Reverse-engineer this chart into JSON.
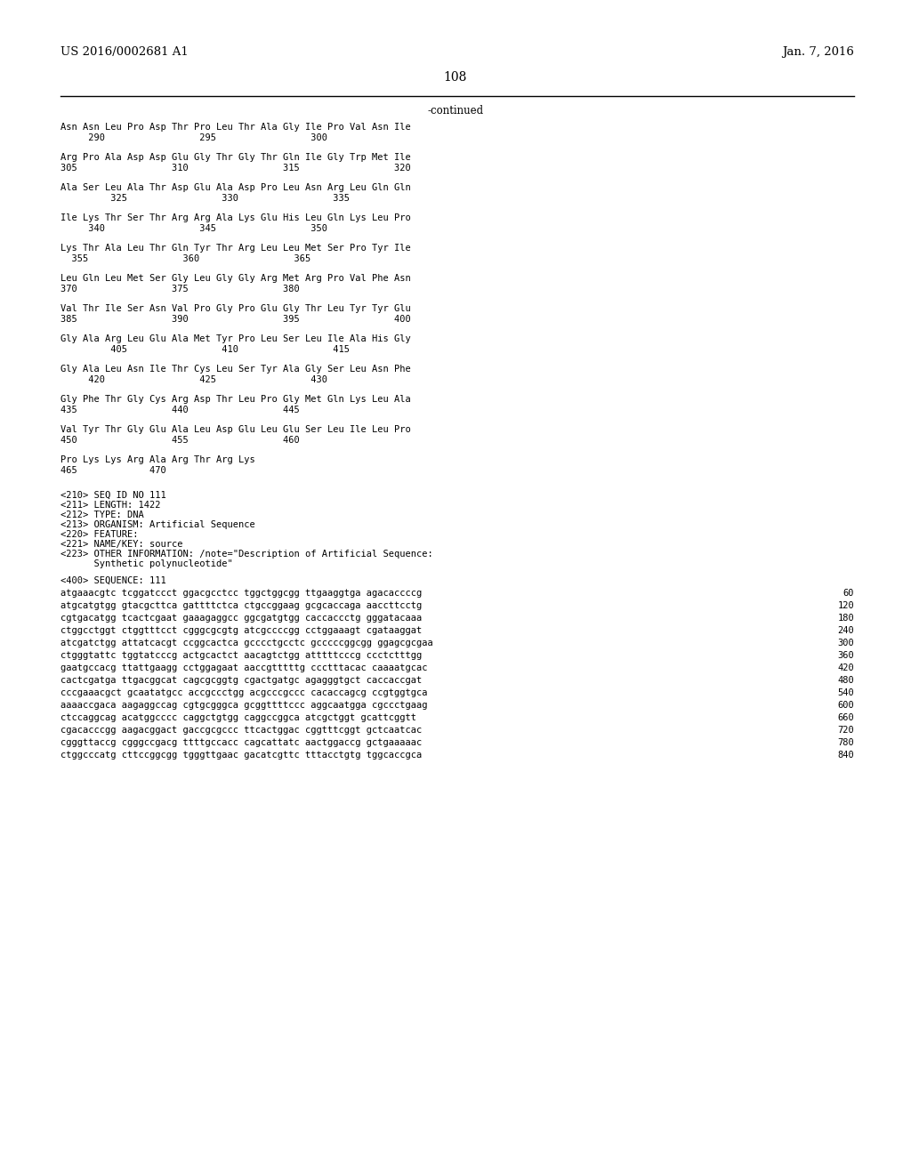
{
  "header_left": "US 2016/0002681 A1",
  "header_right": "Jan. 7, 2016",
  "page_number": "108",
  "continued_label": "-continued",
  "background_color": "#ffffff",
  "text_color": "#000000",
  "mono_font_size": 7.5,
  "header_font_size": 9.5,
  "page_num_font_size": 10.0,
  "amino_acid_blocks": [
    {
      "seq": "Asn Asn Leu Pro Asp Thr Pro Leu Thr Ala Gly Ile Pro Val Asn Ile",
      "nums": "     290                 295                 300"
    },
    {
      "seq": "Arg Pro Ala Asp Asp Glu Gly Thr Gly Thr Gln Ile Gly Trp Met Ile",
      "nums": "305                 310                 315                 320"
    },
    {
      "seq": "Ala Ser Leu Ala Thr Asp Glu Ala Asp Pro Leu Asn Arg Leu Gln Gln",
      "nums": "         325                 330                 335"
    },
    {
      "seq": "Ile Lys Thr Ser Thr Arg Arg Ala Lys Glu His Leu Gln Lys Leu Pro",
      "nums": "     340                 345                 350"
    },
    {
      "seq": "Lys Thr Ala Leu Thr Gln Tyr Thr Arg Leu Leu Met Ser Pro Tyr Ile",
      "nums": "  355                 360                 365"
    },
    {
      "seq": "Leu Gln Leu Met Ser Gly Leu Gly Gly Arg Met Arg Pro Val Phe Asn",
      "nums": "370                 375                 380"
    },
    {
      "seq": "Val Thr Ile Ser Asn Val Pro Gly Pro Glu Gly Thr Leu Tyr Tyr Glu",
      "nums": "385                 390                 395                 400"
    },
    {
      "seq": "Gly Ala Arg Leu Glu Ala Met Tyr Pro Leu Ser Leu Ile Ala His Gly",
      "nums": "         405                 410                 415"
    },
    {
      "seq": "Gly Ala Leu Asn Ile Thr Cys Leu Ser Tyr Ala Gly Ser Leu Asn Phe",
      "nums": "     420                 425                 430"
    },
    {
      "seq": "Gly Phe Thr Gly Cys Arg Asp Thr Leu Pro Gly Met Gln Lys Leu Ala",
      "nums": "435                 440                 445"
    },
    {
      "seq": "Val Tyr Thr Gly Glu Ala Leu Asp Glu Leu Glu Ser Leu Ile Leu Pro",
      "nums": "450                 455                 460"
    },
    {
      "seq": "Pro Lys Lys Arg Ala Arg Thr Arg Lys",
      "nums": "465             470"
    }
  ],
  "metadata_lines": [
    "<210> SEQ ID NO 111",
    "<211> LENGTH: 1422",
    "<212> TYPE: DNA",
    "<213> ORGANISM: Artificial Sequence",
    "<220> FEATURE:",
    "<221> NAME/KEY: source",
    "<223> OTHER INFORMATION: /note=\"Description of Artificial Sequence:",
    "      Synthetic polynucleotide\""
  ],
  "sequence_label": "<400> SEQUENCE: 111",
  "dna_lines": [
    {
      "seq": "atgaaacgtc tcggatccct ggacgcctcc tggctggcgg ttgaaggtga agacaccccg",
      "num": "60"
    },
    {
      "seq": "atgcatgtgg gtacgcttca gattttctca ctgccggaag gcgcaccaga aaccttcctg",
      "num": "120"
    },
    {
      "seq": "cgtgacatgg tcactcgaat gaaagaggcc ggcgatgtgg caccaccctg gggatacaaa",
      "num": "180"
    },
    {
      "seq": "ctggcctggt ctggtttcct cgggcgcgtg atcgccccgg cctggaaagt cgataaggat",
      "num": "240"
    },
    {
      "seq": "atcgatctgg attatcacgt ccggcactca gcccctgcctc gcccccggcgg ggagcgcgaa",
      "num": "300"
    },
    {
      "seq": "ctgggtattc tggtatcccg actgcactct aacagtctgg atttttcccg ccctctttgg",
      "num": "360"
    },
    {
      "seq": "gaatgccacg ttattgaagg cctggagaat aaccgtttttg ccctttacac caaaatgcac",
      "num": "420"
    },
    {
      "seq": "cactcgatga ttgacggcat cagcgcggtg cgactgatgc agagggtgct caccaccgat",
      "num": "480"
    },
    {
      "seq": "cccgaaacgct gcaatatgcc accgccctgg acgcccgccc cacaccagcg ccgtggtgca",
      "num": "540"
    },
    {
      "seq": "aaaaccgaca aagaggccag cgtgcgggca gcggttttccc aggcaatgga cgccctgaag",
      "num": "600"
    },
    {
      "seq": "ctccaggcag acatggcccc caggctgtgg caggccggca atcgctggt gcattcggtt",
      "num": "660"
    },
    {
      "seq": "cgacacccgg aagacggact gaccgcgccc ttcactggac cggtttcggt gctcaatcac",
      "num": "720"
    },
    {
      "seq": "cgggttaccg cgggccgacg ttttgccacc cagcattatc aactggaccg gctgaaaaac",
      "num": "780"
    },
    {
      "seq": "ctggcccatg cttccggcgg tgggttgaac gacatcgttc tttacctgtg tggcaccgca",
      "num": "840"
    }
  ]
}
